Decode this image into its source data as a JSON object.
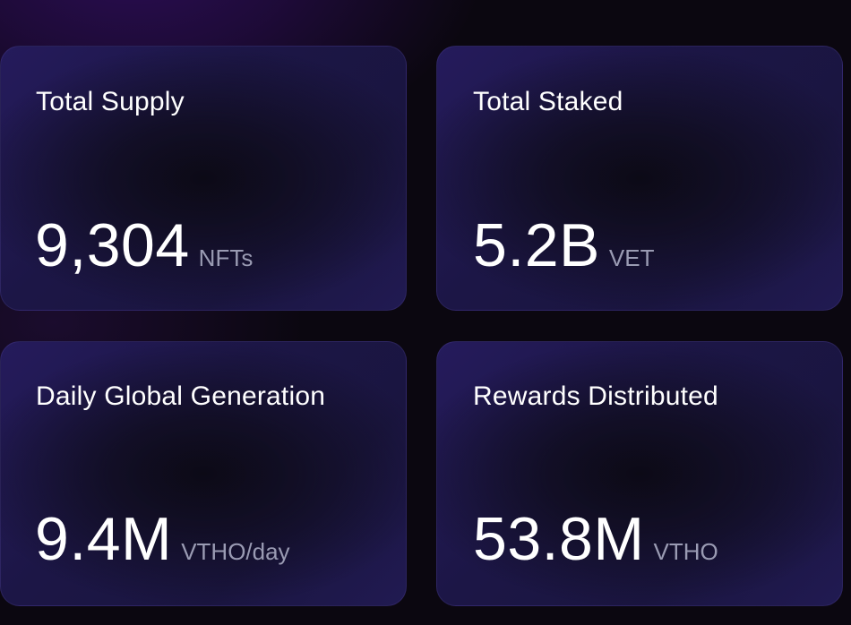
{
  "stats": [
    {
      "title": "Total Supply",
      "value": "9,304",
      "unit": "NFTs"
    },
    {
      "title": "Total Staked",
      "value": "5.2B",
      "unit": "VET"
    },
    {
      "title": "Daily Global Generation",
      "value": "9.4M",
      "unit": "VTHO/day"
    },
    {
      "title": "Rewards Distributed",
      "value": "53.8M",
      "unit": "VTHO"
    }
  ],
  "colors": {
    "background": "#0b0710",
    "card_background": "#1c1646",
    "title_text": "#ffffff",
    "value_text": "#ffffff",
    "unit_text": "#9a9bb3"
  }
}
